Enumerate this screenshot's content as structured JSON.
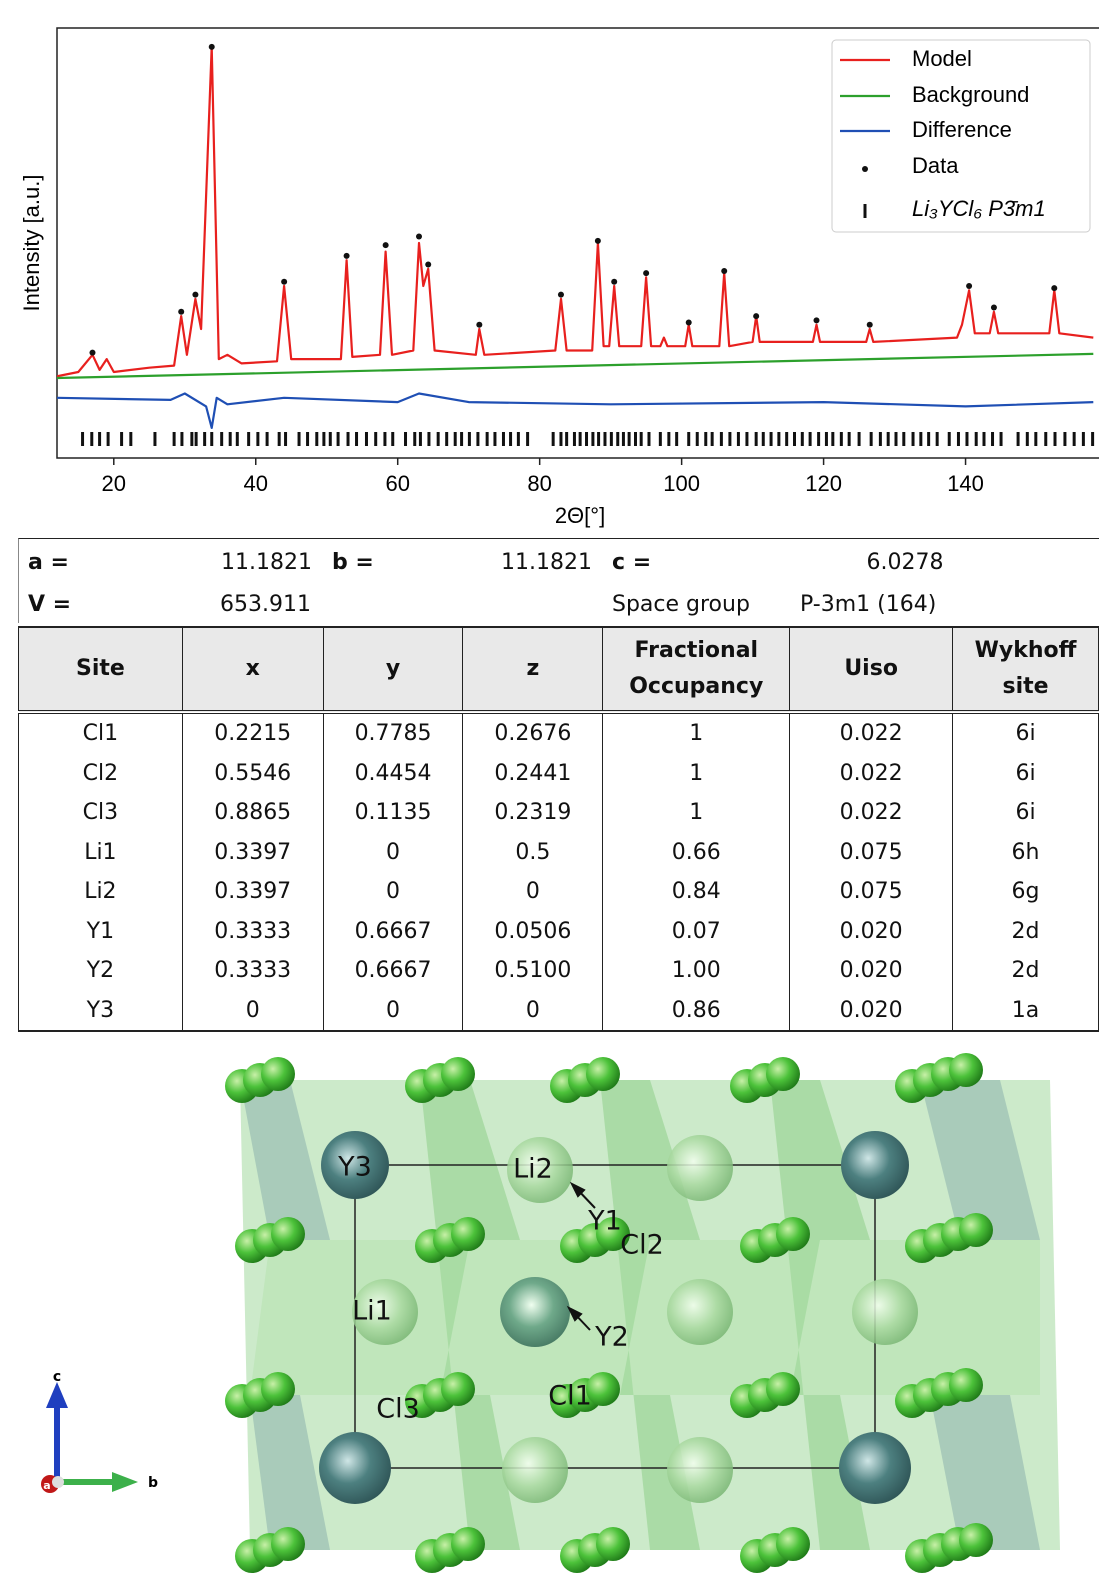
{
  "chart_data": {
    "type": "line",
    "ylabel": "Intensity [a.u.]",
    "xlabel": "2Θ[°]",
    "xlim": [
      12,
      158.8
    ],
    "ylim": [
      0,
      100
    ],
    "xticks": [
      20,
      40,
      60,
      80,
      100,
      120,
      140
    ],
    "legend": "upper right",
    "series": [
      {
        "name": "Model",
        "color": "#e8201e",
        "style": "line",
        "x": [
          12,
          15,
          17,
          18,
          19,
          20,
          25,
          28.5,
          29.5,
          30.3,
          31.5,
          32.3,
          33.8,
          34.8,
          36,
          38,
          43,
          44,
          45,
          52,
          52.8,
          53.6,
          57.5,
          58.3,
          59.2,
          62.2,
          63,
          63.6,
          64.3,
          65.2,
          71,
          71.5,
          72.2,
          82.2,
          83,
          83.8,
          87.4,
          88.2,
          89,
          89.8,
          90.5,
          91.2,
          94.3,
          95,
          95.7,
          97,
          97.5,
          98,
          100.5,
          101,
          101.5,
          105.3,
          106,
          106.7,
          110,
          110.5,
          111,
          118.5,
          119,
          119.5,
          126,
          126.5,
          127,
          138.8,
          139.5,
          140.5,
          141.3,
          143.4,
          144,
          144.6,
          151.8,
          152.5,
          153.2,
          158
        ],
        "values": [
          19,
          20,
          24,
          20.5,
          23,
          20,
          21,
          21.5,
          33,
          24,
          37,
          30,
          95.6,
          23,
          24,
          22,
          22.5,
          40,
          23,
          23,
          46,
          23.5,
          24,
          48,
          24,
          25,
          50,
          40,
          44,
          25,
          24,
          30,
          24,
          25,
          37,
          25,
          25,
          50,
          26,
          26,
          40,
          26,
          26,
          42,
          26,
          26,
          28,
          26,
          26,
          31,
          26,
          26,
          43,
          26,
          27,
          33,
          27,
          27,
          31,
          27,
          27,
          30,
          27,
          28,
          31,
          39,
          29,
          29,
          34,
          29,
          29,
          39,
          29,
          28
        ]
      },
      {
        "name": "Background",
        "color": "#2ca02c",
        "style": "line",
        "x": [
          12,
          158
        ],
        "values": [
          18.6,
          24.2
        ]
      },
      {
        "name": "Difference",
        "color": "#1f4fb4",
        "style": "line",
        "x": [
          12,
          28,
          30,
          33,
          33.8,
          34.5,
          36,
          44,
          60,
          63,
          70,
          90,
          120,
          140,
          158
        ],
        "values": [
          14,
          13.5,
          15,
          12,
          7,
          14,
          12.5,
          14,
          13,
          15,
          13,
          12.5,
          13,
          12,
          13
        ]
      },
      {
        "name": "Data",
        "color": "#111111",
        "style": "dot",
        "x": [
          17,
          29.5,
          31.5,
          33.8,
          44,
          52.8,
          58.3,
          63,
          64.3,
          71.5,
          83,
          88.2,
          90.5,
          95,
          101,
          106,
          110.5,
          119,
          126.5,
          140.5,
          144,
          152.5
        ],
        "values": [
          24.5,
          34,
          38,
          95.6,
          41,
          47,
          49.5,
          51.5,
          45,
          31,
          38,
          50.5,
          41,
          43,
          31.5,
          43.5,
          33,
          32,
          31,
          40,
          35,
          39.5
        ]
      },
      {
        "name": "Li₃YCl₆  P3̄m1",
        "color": "#111111",
        "style": "tick",
        "x": [
          15.6,
          16.9,
          18.0,
          19.2,
          21.1,
          22.4,
          25.8,
          28.5,
          29.6,
          31.0,
          31.6,
          32.8,
          33.8,
          35.2,
          36.4,
          37.4,
          39.0,
          40.3,
          41.6,
          43.3,
          44.2,
          46.1,
          47.3,
          48.6,
          49.6,
          50.5,
          51.6,
          53.0,
          54.2,
          55.6,
          56.9,
          58.2,
          59.3,
          61.1,
          62.4,
          63.2,
          64.4,
          65.7,
          66.9,
          68.1,
          69.0,
          70.1,
          71.3,
          72.6,
          73.7,
          74.9,
          75.9,
          77.0,
          78.3,
          81.9,
          83.0,
          83.8,
          84.9,
          85.7,
          86.6,
          87.5,
          88.3,
          89.2,
          90.1,
          91.0,
          91.8,
          92.6,
          93.5,
          94.3,
          95.4,
          97.0,
          98.2,
          99.3,
          101.0,
          102.2,
          103.4,
          104.3,
          105.6,
          106.8,
          108.0,
          109.2,
          110.5,
          111.5,
          112.6,
          113.7,
          114.8,
          115.9,
          117.0,
          118.1,
          119.3,
          120.4,
          121.3,
          122.5,
          123.6,
          125.0,
          126.7,
          128.0,
          129.1,
          130.2,
          131.3,
          132.6,
          133.7,
          134.8,
          136.0,
          137.7,
          139.0,
          140.2,
          141.5,
          142.6,
          143.8,
          145.0,
          147.4,
          148.7,
          149.9,
          151.3,
          152.6,
          154.0,
          155.3,
          156.6,
          157.9
        ]
      }
    ]
  },
  "lattice": {
    "a_label": "a =",
    "a": "11.1821",
    "b_label": "b =",
    "b": "11.1821",
    "c_label": "c =",
    "c": "6.0278",
    "v_label": "V =",
    "v": "653.911",
    "sg_label": "Space group",
    "sg": "P-3m1 (164)"
  },
  "table": {
    "header": [
      "Site",
      "x",
      "y",
      "z",
      "Fractional Occupancy",
      "Uiso",
      "Wykhoff site"
    ],
    "rows": [
      [
        "Cl1",
        "0.2215",
        "0.7785",
        "0.2676",
        "1",
        "0.022",
        "6i"
      ],
      [
        "Cl2",
        "0.5546",
        "0.4454",
        "0.2441",
        "1",
        "0.022",
        "6i"
      ],
      [
        "Cl3",
        "0.8865",
        "0.1135",
        "0.2319",
        "1",
        "0.022",
        "6i"
      ],
      [
        "Li1",
        "0.3397",
        "0",
        "0.5",
        "0.66",
        "0.075",
        "6h"
      ],
      [
        "Li2",
        "0.3397",
        "0",
        "0",
        "0.84",
        "0.075",
        "6g"
      ],
      [
        "Y1",
        "0.3333",
        "0.6667",
        "0.0506",
        "0.07",
        "0.020",
        "2d"
      ],
      [
        "Y2",
        "0.3333",
        "0.6667",
        "0.5100",
        "1.00",
        "0.020",
        "2d"
      ],
      [
        "Y3",
        "0",
        "0",
        "0",
        "0.86",
        "0.020",
        "1a"
      ]
    ]
  },
  "structure": {
    "labels": [
      "Y3",
      "Li2",
      "Y1",
      "Cl2",
      "Li1",
      "Y2",
      "Cl3",
      "Cl1"
    ],
    "axes": [
      "c",
      "b",
      "a"
    ]
  }
}
